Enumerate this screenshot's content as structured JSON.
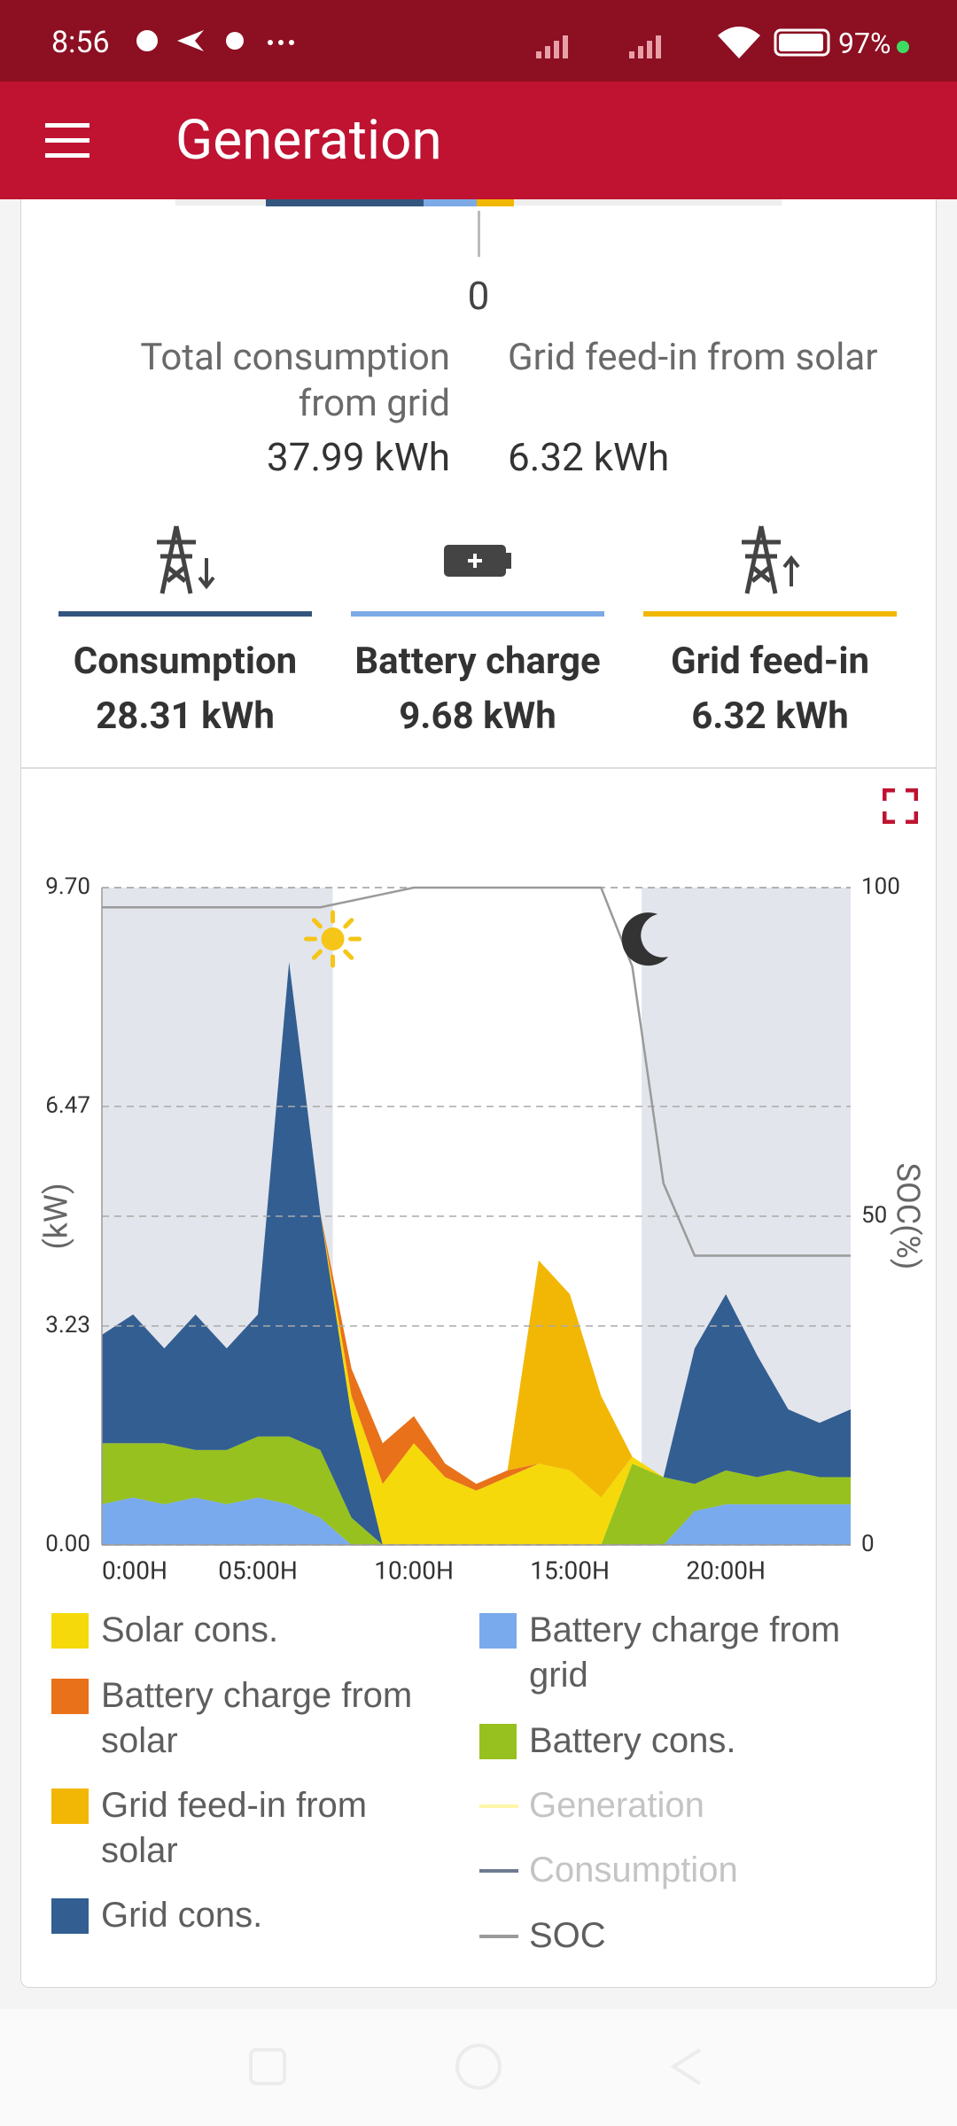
{
  "status_bar": {
    "time": "8:56",
    "battery": "97%"
  },
  "header": {
    "title": "Generation"
  },
  "summary": {
    "scale_value": 0,
    "left": {
      "label": "Total consumption from grid",
      "value": "37.99 kWh"
    },
    "right": {
      "label": "Grid feed-in from solar",
      "value": "6.32 kWh"
    }
  },
  "cards": [
    {
      "label": "Consumption",
      "value": "28.31 kWh",
      "color": "#34557e"
    },
    {
      "label": "Battery charge",
      "value": "9.68 kWh",
      "color": "#7daae6"
    },
    {
      "label": "Grid feed-in",
      "value": "6.32 kWh",
      "color": "#f2b700"
    }
  ],
  "chart_data": {
    "type": "area",
    "stacked": true,
    "ylabel": "(kW)",
    "y2label": "SOC(%)",
    "x": [
      0,
      1,
      2,
      3,
      4,
      5,
      6,
      7,
      8,
      9,
      10,
      11,
      12,
      13,
      14,
      15,
      16,
      17,
      18,
      19,
      20,
      21,
      22,
      23,
      24
    ],
    "xlim": [
      0,
      24
    ],
    "ylim": [
      0,
      9.7
    ],
    "y2lim": [
      0,
      100
    ],
    "xticks": [
      {
        "value": 0,
        "label": "0:00H"
      },
      {
        "value": 5,
        "label": "05:00H"
      },
      {
        "value": 10,
        "label": "10:00H"
      },
      {
        "value": 15,
        "label": "15:00H"
      },
      {
        "value": 20,
        "label": "20:00H"
      }
    ],
    "yticks": [
      {
        "value": 0,
        "label": "0.00"
      },
      3.23,
      6.47,
      {
        "value": 9.7,
        "label": "9.70"
      }
    ],
    "y2ticks": [
      0,
      50,
      100
    ],
    "grid": true,
    "day": {
      "sunrise": 7.4,
      "sunset": 17.3
    },
    "series": [
      {
        "name": "Solar cons.",
        "color": "#f5d90a",
        "style": "area",
        "visible": true,
        "values": [
          0,
          0,
          0,
          0,
          0,
          0,
          0,
          0,
          0.3,
          0.9,
          1.5,
          1.0,
          0.8,
          1.0,
          1.2,
          1.1,
          0.7,
          0.1,
          0,
          0,
          0,
          0,
          0,
          0,
          0
        ]
      },
      {
        "name": "Battery charge from solar",
        "color": "#e8711a",
        "style": "area",
        "visible": true,
        "values": [
          0,
          0,
          0,
          0,
          0,
          0,
          0,
          0,
          0.4,
          0.6,
          0.4,
          0.2,
          0.1,
          0.1,
          0,
          0,
          0,
          0,
          0,
          0,
          0,
          0,
          0,
          0,
          0
        ]
      },
      {
        "name": "Grid feed-in from solar",
        "color": "#f2b705",
        "style": "area",
        "visible": true,
        "values": [
          0,
          0,
          0,
          0,
          0,
          0,
          0,
          0,
          0,
          0,
          0,
          0,
          0,
          0,
          3.0,
          2.6,
          1.5,
          0,
          0,
          0,
          0,
          0,
          0,
          0,
          0
        ]
      },
      {
        "name": "Grid cons.",
        "color": "#335e91",
        "style": "area",
        "visible": true,
        "values": [
          1.6,
          1.9,
          1.4,
          2.0,
          1.5,
          1.8,
          7.0,
          3.5,
          1.5,
          0,
          0,
          0,
          0,
          0,
          0,
          0,
          0,
          0,
          0,
          2.0,
          2.6,
          1.8,
          0.9,
          0.8,
          1.0
        ]
      },
      {
        "name": "Battery charge from grid",
        "color": "#79aaed",
        "style": "area",
        "visible": true,
        "values": [
          0.6,
          0.7,
          0.6,
          0.7,
          0.6,
          0.7,
          0.6,
          0.4,
          0,
          0,
          0,
          0,
          0,
          0,
          0,
          0,
          0,
          0,
          0,
          0.5,
          0.6,
          0.6,
          0.6,
          0.6,
          0.6
        ]
      },
      {
        "name": "Battery cons.",
        "color": "#97c11f",
        "style": "area",
        "visible": true,
        "values": [
          0.9,
          0.8,
          0.9,
          0.7,
          0.8,
          0.9,
          1.0,
          1.0,
          0.4,
          0,
          0,
          0,
          0,
          0,
          0,
          0,
          0,
          1.2,
          1.0,
          0.4,
          0.5,
          0.4,
          0.5,
          0.4,
          0.4
        ]
      },
      {
        "name": "Generation",
        "color": "#fff6a8",
        "style": "line",
        "visible": false
      },
      {
        "name": "Consumption",
        "color": "#6e7c91",
        "style": "line",
        "visible": false
      },
      {
        "name": "SOC",
        "color": "#9a9a9a",
        "style": "line",
        "visible": true,
        "axis": "y2",
        "values": [
          97,
          97,
          97,
          97,
          97,
          97,
          97,
          97,
          98,
          99,
          100,
          100,
          100,
          100,
          100,
          100,
          100,
          88,
          55,
          44,
          44,
          44,
          44,
          44,
          44
        ]
      }
    ]
  }
}
